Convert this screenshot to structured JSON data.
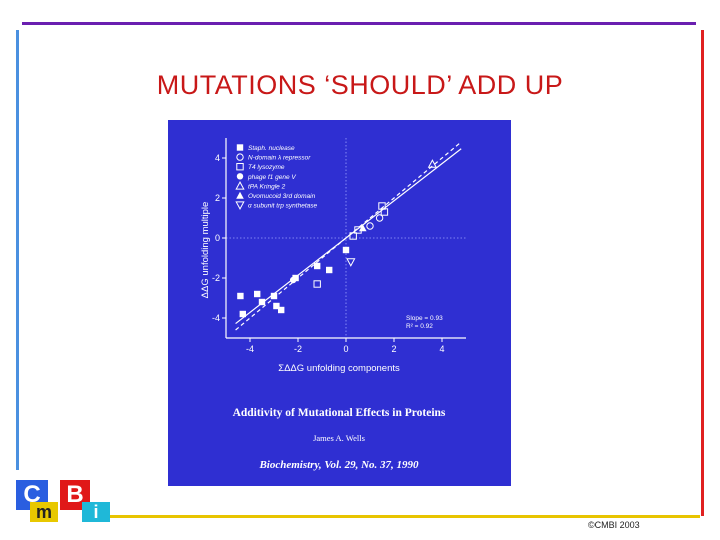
{
  "slide": {
    "title": "MUTATIONS ‘SHOULD’ ADD UP",
    "copyright": "©CMBI 2003"
  },
  "logo": {
    "letters": [
      "C",
      "m",
      "B",
      "i"
    ]
  },
  "figure": {
    "caption_title": "Additivity of Mutational Effects in Proteins",
    "caption_author": "James A. Wells",
    "caption_journal": "Biochemistry, Vol. 29, No. 37, 1990",
    "fit_slope": "Slope = 0.93",
    "fit_r2": "R² = 0.92"
  },
  "chart_data": {
    "type": "scatter",
    "xlabel": "ΣΔΔG unfolding components",
    "ylabel": "ΔΔG unfolding multiple",
    "xlim": [
      -5,
      5
    ],
    "ylim": [
      -5,
      5
    ],
    "xticks": [
      "-4",
      "-2",
      "0",
      "2",
      "4"
    ],
    "yticks": [
      "-4",
      "-2",
      "0",
      "2",
      "4"
    ],
    "legend_position": "top-left",
    "series": [
      {
        "name": "Staph. nuclease",
        "marker": "filled-square",
        "points": [
          [
            -4.4,
            -2.9
          ],
          [
            -3.7,
            -2.8
          ],
          [
            -3.0,
            -2.9
          ],
          [
            -4.3,
            -3.8
          ],
          [
            -3.5,
            -3.2
          ],
          [
            -2.9,
            -3.4
          ],
          [
            -2.7,
            -3.6
          ],
          [
            -2.1,
            -2.0
          ],
          [
            -1.2,
            -1.4
          ],
          [
            -0.7,
            -1.6
          ],
          [
            0.0,
            -0.6
          ]
        ]
      },
      {
        "name": "N-domain λ repressor",
        "marker": "open-circle",
        "points": [
          [
            1.0,
            0.6
          ],
          [
            1.4,
            1.0
          ]
        ]
      },
      {
        "name": "T4 lysozyme",
        "marker": "open-square",
        "points": [
          [
            -1.2,
            -2.3
          ],
          [
            0.3,
            0.1
          ],
          [
            0.5,
            0.4
          ],
          [
            1.5,
            1.6
          ],
          [
            1.6,
            1.3
          ]
        ]
      },
      {
        "name": "phage f1 gene V",
        "marker": "filled-circle",
        "points": [
          [
            -2.2,
            -2.1
          ]
        ]
      },
      {
        "name": "tPA Kringle 2",
        "marker": "open-triangle",
        "points": [
          [
            3.6,
            3.7
          ]
        ]
      },
      {
        "name": "Ovomucoid 3rd domain",
        "marker": "filled-triangle",
        "points": [
          [
            0.7,
            0.5
          ]
        ]
      },
      {
        "name": "α subunit trp synthetase",
        "marker": "open-triangle-down",
        "points": [
          [
            0.2,
            -1.2
          ]
        ]
      }
    ],
    "fit_line": {
      "slope": 0.93,
      "intercept": 0
    },
    "diagonal_dashed": {
      "slope": 1,
      "intercept": 0
    }
  }
}
